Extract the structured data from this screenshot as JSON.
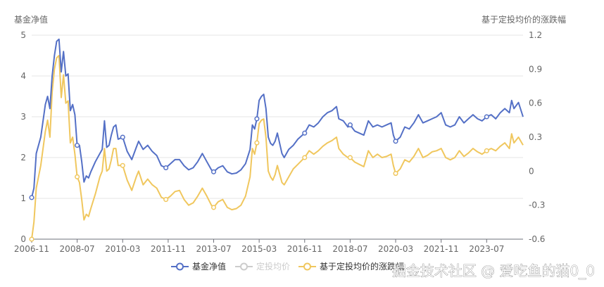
{
  "chart_data": {
    "type": "line",
    "left_axis_title": "基金净值",
    "right_axis_title": "基于定投均价的涨跌幅",
    "x_ticks": [
      "2006-11",
      "2008-07",
      "2010-03",
      "2011-11",
      "2013-07",
      "2015-03",
      "2016-11",
      "2018-07",
      "2020-03",
      "2021-11",
      "2023-07"
    ],
    "x_range": [
      "2006-11",
      "2024-11"
    ],
    "y_left_ticks": [
      "0",
      "1",
      "2",
      "3",
      "4",
      "5"
    ],
    "y_left_range": [
      0,
      5
    ],
    "y_right_ticks": [
      "-0.6",
      "-0.3",
      "0",
      "0.3",
      "0.6",
      "0.9",
      "1.2"
    ],
    "y_right_range": [
      -0.6,
      1.2
    ],
    "grid": true,
    "series": [
      {
        "name": "基金净值",
        "axis": "left",
        "color": "#5470c6",
        "enabled": true,
        "points": [
          [
            "2006-11",
            1.02
          ],
          [
            "2006-12",
            1.25
          ],
          [
            "2007-01",
            2.1
          ],
          [
            "2007-03",
            2.5
          ],
          [
            "2007-05",
            3.3
          ],
          [
            "2007-06",
            3.5
          ],
          [
            "2007-07",
            3.2
          ],
          [
            "2007-08",
            4.0
          ],
          [
            "2007-09",
            4.5
          ],
          [
            "2007-10",
            4.85
          ],
          [
            "2007-11",
            4.9
          ],
          [
            "2007-12",
            4.1
          ],
          [
            "2008-01",
            4.6
          ],
          [
            "2008-02",
            4.0
          ],
          [
            "2008-03",
            4.05
          ],
          [
            "2008-04",
            3.15
          ],
          [
            "2008-05",
            3.3
          ],
          [
            "2008-06",
            3.05
          ],
          [
            "2008-07",
            2.3
          ],
          [
            "2008-08",
            2.3
          ],
          [
            "2008-09",
            1.9
          ],
          [
            "2008-10",
            1.4
          ],
          [
            "2008-11",
            1.55
          ],
          [
            "2008-12",
            1.5
          ],
          [
            "2009-01",
            1.65
          ],
          [
            "2009-03",
            1.9
          ],
          [
            "2009-05",
            2.1
          ],
          [
            "2009-06",
            2.2
          ],
          [
            "2009-07",
            2.9
          ],
          [
            "2009-08",
            2.25
          ],
          [
            "2009-09",
            2.3
          ],
          [
            "2009-10",
            2.55
          ],
          [
            "2009-11",
            2.75
          ],
          [
            "2009-12",
            2.8
          ],
          [
            "2010-01",
            2.45
          ],
          [
            "2010-03",
            2.5
          ],
          [
            "2010-05",
            2.15
          ],
          [
            "2010-07",
            1.95
          ],
          [
            "2010-09",
            2.25
          ],
          [
            "2010-10",
            2.4
          ],
          [
            "2010-12",
            2.2
          ],
          [
            "2011-02",
            2.3
          ],
          [
            "2011-04",
            2.15
          ],
          [
            "2011-06",
            2.05
          ],
          [
            "2011-08",
            1.8
          ],
          [
            "2011-10",
            1.75
          ],
          [
            "2011-12",
            1.85
          ],
          [
            "2012-02",
            1.95
          ],
          [
            "2012-04",
            1.95
          ],
          [
            "2012-06",
            1.8
          ],
          [
            "2012-08",
            1.7
          ],
          [
            "2012-10",
            1.75
          ],
          [
            "2012-12",
            1.9
          ],
          [
            "2013-02",
            2.1
          ],
          [
            "2013-04",
            1.9
          ],
          [
            "2013-06",
            1.7
          ],
          [
            "2013-07",
            1.65
          ],
          [
            "2013-09",
            1.75
          ],
          [
            "2013-11",
            1.8
          ],
          [
            "2014-01",
            1.65
          ],
          [
            "2014-03",
            1.6
          ],
          [
            "2014-05",
            1.62
          ],
          [
            "2014-07",
            1.7
          ],
          [
            "2014-09",
            1.85
          ],
          [
            "2014-11",
            2.2
          ],
          [
            "2014-12",
            2.8
          ],
          [
            "2015-01",
            2.7
          ],
          [
            "2015-02",
            2.95
          ],
          [
            "2015-03",
            3.4
          ],
          [
            "2015-04",
            3.5
          ],
          [
            "2015-05",
            3.55
          ],
          [
            "2015-06",
            3.2
          ],
          [
            "2015-07",
            2.5
          ],
          [
            "2015-08",
            2.35
          ],
          [
            "2015-09",
            2.3
          ],
          [
            "2015-10",
            2.4
          ],
          [
            "2015-11",
            2.6
          ],
          [
            "2016-01",
            2.1
          ],
          [
            "2016-02",
            2.0
          ],
          [
            "2016-04",
            2.2
          ],
          [
            "2016-06",
            2.3
          ],
          [
            "2016-08",
            2.45
          ],
          [
            "2016-10",
            2.55
          ],
          [
            "2016-11",
            2.6
          ],
          [
            "2017-01",
            2.8
          ],
          [
            "2017-03",
            2.75
          ],
          [
            "2017-05",
            2.85
          ],
          [
            "2017-07",
            3.0
          ],
          [
            "2017-09",
            3.1
          ],
          [
            "2017-11",
            3.15
          ],
          [
            "2018-01",
            3.25
          ],
          [
            "2018-02",
            2.95
          ],
          [
            "2018-04",
            2.9
          ],
          [
            "2018-06",
            2.75
          ],
          [
            "2018-07",
            2.8
          ],
          [
            "2018-09",
            2.65
          ],
          [
            "2018-11",
            2.6
          ],
          [
            "2019-01",
            2.55
          ],
          [
            "2019-03",
            2.9
          ],
          [
            "2019-05",
            2.75
          ],
          [
            "2019-07",
            2.8
          ],
          [
            "2019-09",
            2.75
          ],
          [
            "2019-11",
            2.8
          ],
          [
            "2020-01",
            2.85
          ],
          [
            "2020-02",
            2.55
          ],
          [
            "2020-03",
            2.4
          ],
          [
            "2020-05",
            2.5
          ],
          [
            "2020-07",
            2.75
          ],
          [
            "2020-09",
            2.7
          ],
          [
            "2020-11",
            2.85
          ],
          [
            "2021-01",
            3.05
          ],
          [
            "2021-03",
            2.85
          ],
          [
            "2021-05",
            2.9
          ],
          [
            "2021-07",
            2.95
          ],
          [
            "2021-09",
            3.0
          ],
          [
            "2021-11",
            3.1
          ],
          [
            "2022-01",
            2.8
          ],
          [
            "2022-03",
            2.75
          ],
          [
            "2022-05",
            2.8
          ],
          [
            "2022-07",
            3.0
          ],
          [
            "2022-09",
            2.85
          ],
          [
            "2022-11",
            2.95
          ],
          [
            "2023-01",
            3.05
          ],
          [
            "2023-03",
            2.95
          ],
          [
            "2023-05",
            2.9
          ],
          [
            "2023-07",
            3.0
          ],
          [
            "2023-09",
            3.05
          ],
          [
            "2023-11",
            2.95
          ],
          [
            "2024-01",
            3.1
          ],
          [
            "2024-03",
            3.2
          ],
          [
            "2024-05",
            3.1
          ],
          [
            "2024-06",
            3.4
          ],
          [
            "2024-07",
            3.2
          ],
          [
            "2024-09",
            3.35
          ],
          [
            "2024-11",
            3.0
          ]
        ]
      },
      {
        "name": "定投均价",
        "axis": "left",
        "color": "#cccccc",
        "enabled": false,
        "points": []
      },
      {
        "name": "基于定投均价的涨跌幅",
        "axis": "right",
        "color": "#f0c75e",
        "enabled": true,
        "points": [
          [
            "2006-11",
            -0.6
          ],
          [
            "2006-12",
            -0.45
          ],
          [
            "2007-01",
            -0.15
          ],
          [
            "2007-03",
            0.05
          ],
          [
            "2007-05",
            0.35
          ],
          [
            "2007-06",
            0.45
          ],
          [
            "2007-07",
            0.3
          ],
          [
            "2007-08",
            0.7
          ],
          [
            "2007-09",
            0.9
          ],
          [
            "2007-10",
            1.0
          ],
          [
            "2007-11",
            1.02
          ],
          [
            "2007-12",
            0.65
          ],
          [
            "2008-01",
            0.85
          ],
          [
            "2008-02",
            0.6
          ],
          [
            "2008-03",
            0.62
          ],
          [
            "2008-04",
            0.25
          ],
          [
            "2008-05",
            0.3
          ],
          [
            "2008-06",
            0.15
          ],
          [
            "2008-07",
            -0.05
          ],
          [
            "2008-08",
            -0.1
          ],
          [
            "2008-09",
            -0.25
          ],
          [
            "2008-10",
            -0.43
          ],
          [
            "2008-11",
            -0.38
          ],
          [
            "2008-12",
            -0.4
          ],
          [
            "2009-01",
            -0.33
          ],
          [
            "2009-03",
            -0.2
          ],
          [
            "2009-05",
            -0.05
          ],
          [
            "2009-06",
            0.0
          ],
          [
            "2009-07",
            0.2
          ],
          [
            "2009-08",
            0.0
          ],
          [
            "2009-09",
            0.02
          ],
          [
            "2009-10",
            0.1
          ],
          [
            "2009-11",
            0.2
          ],
          [
            "2009-12",
            0.2
          ],
          [
            "2010-01",
            0.05
          ],
          [
            "2010-03",
            0.05
          ],
          [
            "2010-05",
            -0.08
          ],
          [
            "2010-07",
            -0.17
          ],
          [
            "2010-09",
            -0.05
          ],
          [
            "2010-10",
            0.0
          ],
          [
            "2010-12",
            -0.12
          ],
          [
            "2011-02",
            -0.07
          ],
          [
            "2011-04",
            -0.12
          ],
          [
            "2011-06",
            -0.15
          ],
          [
            "2011-08",
            -0.23
          ],
          [
            "2011-10",
            -0.25
          ],
          [
            "2011-12",
            -0.22
          ],
          [
            "2012-02",
            -0.18
          ],
          [
            "2012-04",
            -0.17
          ],
          [
            "2012-06",
            -0.25
          ],
          [
            "2012-08",
            -0.3
          ],
          [
            "2012-10",
            -0.28
          ],
          [
            "2012-12",
            -0.22
          ],
          [
            "2013-02",
            -0.15
          ],
          [
            "2013-04",
            -0.22
          ],
          [
            "2013-06",
            -0.3
          ],
          [
            "2013-07",
            -0.32
          ],
          [
            "2013-09",
            -0.27
          ],
          [
            "2013-11",
            -0.25
          ],
          [
            "2014-01",
            -0.32
          ],
          [
            "2014-03",
            -0.34
          ],
          [
            "2014-05",
            -0.33
          ],
          [
            "2014-07",
            -0.3
          ],
          [
            "2014-09",
            -0.22
          ],
          [
            "2014-11",
            -0.05
          ],
          [
            "2014-12",
            0.2
          ],
          [
            "2015-01",
            0.15
          ],
          [
            "2015-02",
            0.25
          ],
          [
            "2015-03",
            0.42
          ],
          [
            "2015-04",
            0.45
          ],
          [
            "2015-05",
            0.46
          ],
          [
            "2015-06",
            0.3
          ],
          [
            "2015-07",
            0.0
          ],
          [
            "2015-08",
            -0.05
          ],
          [
            "2015-09",
            -0.08
          ],
          [
            "2015-10",
            -0.03
          ],
          [
            "2015-11",
            0.05
          ],
          [
            "2016-01",
            -0.1
          ],
          [
            "2016-02",
            -0.12
          ],
          [
            "2016-04",
            -0.05
          ],
          [
            "2016-06",
            0.02
          ],
          [
            "2016-08",
            0.06
          ],
          [
            "2016-10",
            0.1
          ],
          [
            "2016-11",
            0.12
          ],
          [
            "2017-01",
            0.18
          ],
          [
            "2017-03",
            0.15
          ],
          [
            "2017-05",
            0.18
          ],
          [
            "2017-07",
            0.22
          ],
          [
            "2017-09",
            0.25
          ],
          [
            "2017-11",
            0.27
          ],
          [
            "2018-01",
            0.3
          ],
          [
            "2018-02",
            0.2
          ],
          [
            "2018-04",
            0.15
          ],
          [
            "2018-06",
            0.12
          ],
          [
            "2018-07",
            0.12
          ],
          [
            "2018-09",
            0.08
          ],
          [
            "2018-11",
            0.06
          ],
          [
            "2019-01",
            0.04
          ],
          [
            "2019-03",
            0.18
          ],
          [
            "2019-05",
            0.12
          ],
          [
            "2019-07",
            0.15
          ],
          [
            "2019-09",
            0.12
          ],
          [
            "2019-11",
            0.13
          ],
          [
            "2020-01",
            0.15
          ],
          [
            "2020-02",
            0.05
          ],
          [
            "2020-03",
            -0.02
          ],
          [
            "2020-05",
            0.02
          ],
          [
            "2020-07",
            0.1
          ],
          [
            "2020-09",
            0.08
          ],
          [
            "2020-11",
            0.13
          ],
          [
            "2021-01",
            0.2
          ],
          [
            "2021-03",
            0.12
          ],
          [
            "2021-05",
            0.14
          ],
          [
            "2021-07",
            0.17
          ],
          [
            "2021-09",
            0.18
          ],
          [
            "2021-11",
            0.2
          ],
          [
            "2022-01",
            0.12
          ],
          [
            "2022-03",
            0.1
          ],
          [
            "2022-05",
            0.12
          ],
          [
            "2022-07",
            0.18
          ],
          [
            "2022-09",
            0.13
          ],
          [
            "2022-11",
            0.16
          ],
          [
            "2023-01",
            0.2
          ],
          [
            "2023-03",
            0.17
          ],
          [
            "2023-05",
            0.15
          ],
          [
            "2023-07",
            0.18
          ],
          [
            "2023-09",
            0.2
          ],
          [
            "2023-11",
            0.18
          ],
          [
            "2024-01",
            0.22
          ],
          [
            "2024-03",
            0.25
          ],
          [
            "2024-05",
            0.2
          ],
          [
            "2024-06",
            0.33
          ],
          [
            "2024-07",
            0.25
          ],
          [
            "2024-09",
            0.3
          ],
          [
            "2024-11",
            0.23
          ]
        ]
      }
    ],
    "markers": {
      "基金净值": [
        "2006-11",
        "2008-07",
        "2010-03",
        "2011-10",
        "2013-07",
        "2015-02",
        "2016-11",
        "2018-07",
        "2020-03",
        "2023-07"
      ],
      "基于定投均价的涨跌幅": [
        "2006-11",
        "2008-07",
        "2010-03",
        "2011-10",
        "2013-07",
        "2015-02",
        "2016-11",
        "2018-07",
        "2020-03",
        "2023-07"
      ]
    }
  },
  "watermark": "掘金技术社区 @ 爱吃鱼的猫0_0"
}
